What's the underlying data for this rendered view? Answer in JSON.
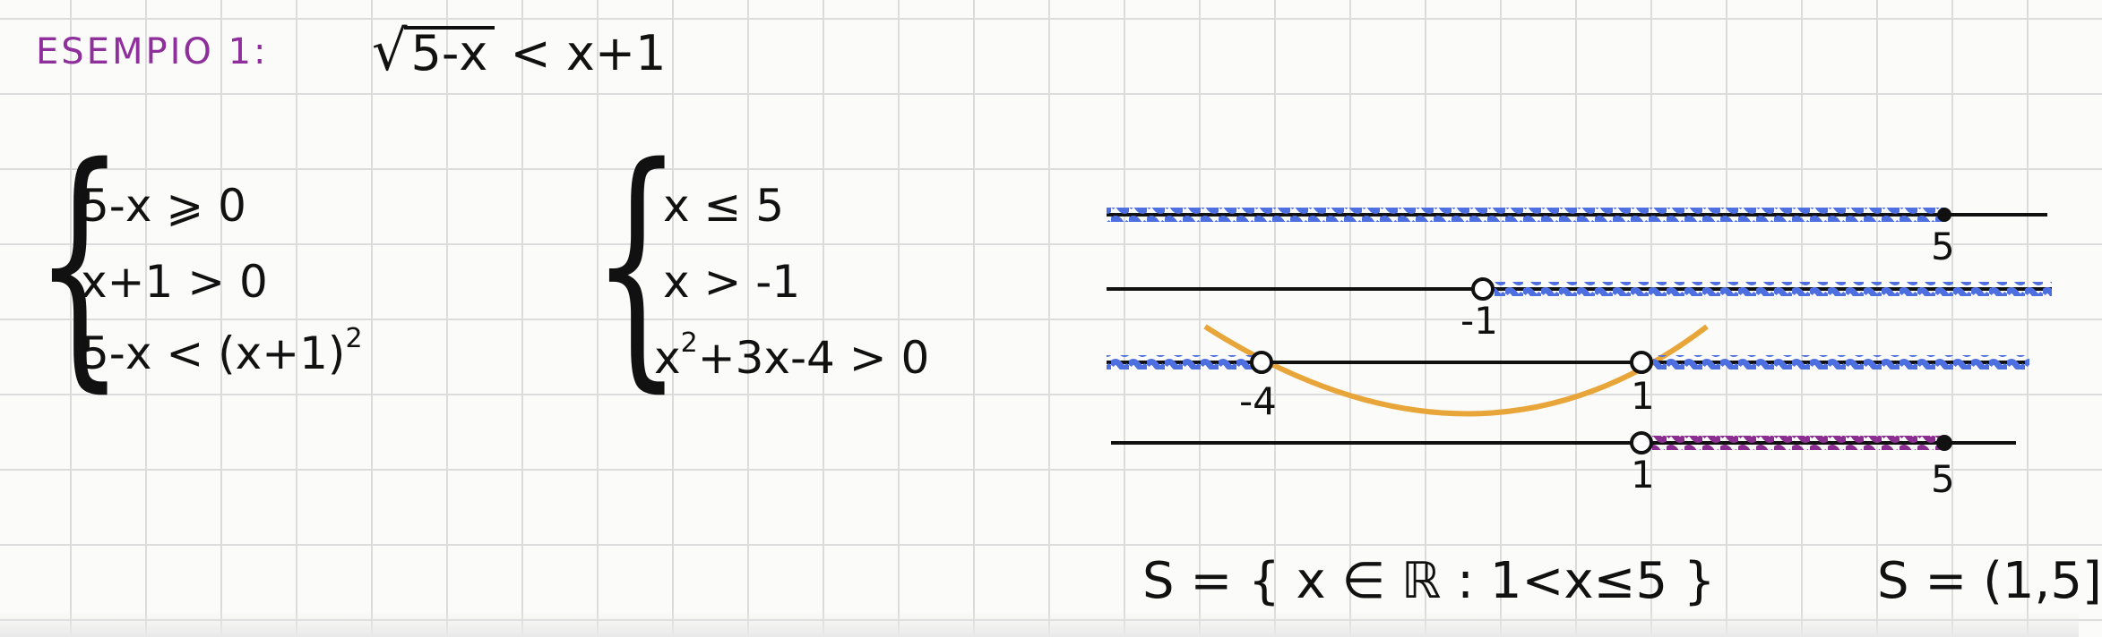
{
  "header": {
    "title": "ESEMPIO 1:",
    "radicand": "5-x",
    "rhs": "< x+1"
  },
  "system_original": {
    "lines": [
      "5-x ⩾ 0",
      "x+1 > 0",
      "5-x < (x+1)"
    ],
    "exponent": "2"
  },
  "system_simplified": {
    "lines": [
      "x ≤ 5",
      "x > -1"
    ],
    "line3_base": "x",
    "line3_exp": "2",
    "line3_rest": "+3x-4 > 0"
  },
  "number_lines": {
    "labels": {
      "line1_5": "5",
      "line2_m1": "-1",
      "line3_m4": "-4",
      "line3_1": "1",
      "line4_1": "1",
      "line4_5": "5"
    },
    "colors": {
      "valid": "#4d6fe0",
      "result": "#8a2f8f",
      "parabola": "#e8a63a",
      "axis": "#111111"
    }
  },
  "solution": {
    "set": "S = { x ∈ ℝ : 1<x≤5 }",
    "interval": "S = (1,5]"
  }
}
